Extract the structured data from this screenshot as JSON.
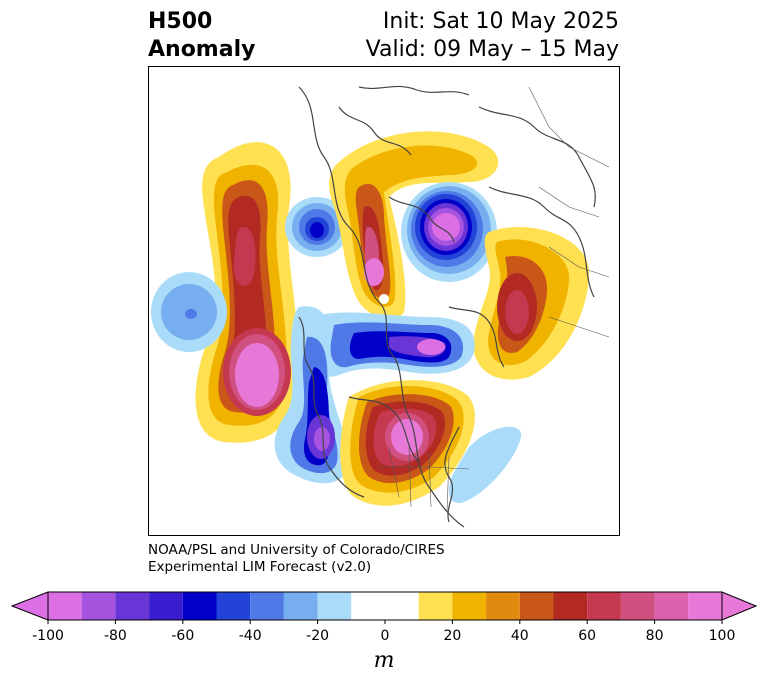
{
  "header": {
    "title_line1": "H500",
    "title_line2": "Anomaly",
    "init_text": "Init: Sat 10 May 2025",
    "valid_text": "Valid: 09 May – 15 May"
  },
  "credit": {
    "line1": "NOAA/PSL and University of Colorado/CIRES",
    "line2": "Experimental LIM Forecast (v2.0)"
  },
  "colorbar": {
    "unit": "m",
    "levels": [
      -100,
      -90,
      -80,
      -70,
      -60,
      -50,
      -40,
      -30,
      -20,
      -10,
      0,
      10,
      20,
      30,
      40,
      50,
      60,
      70,
      80,
      90,
      100
    ],
    "colors": [
      "#dc6fe6",
      "#a653df",
      "#6a35d6",
      "#3c1ccf",
      "#0000c8",
      "#2343d8",
      "#4f79e6",
      "#76aef0",
      "#aadcfa",
      "#ffffff",
      "#ffffff",
      "#ffe050",
      "#f0b400",
      "#e08a10",
      "#c95818",
      "#b22a22",
      "#c4394f",
      "#d0507f",
      "#dc62ad",
      "#e878d8"
    ],
    "under_color": "#dc6fe6",
    "over_color": "#e878d8",
    "tick_labels": [
      "-100",
      "-80",
      "-60",
      "-40",
      "-20",
      "0",
      "20",
      "40",
      "60",
      "80",
      "100"
    ]
  },
  "map_colors": {
    "coast": "#444444",
    "frame": "#000000"
  }
}
